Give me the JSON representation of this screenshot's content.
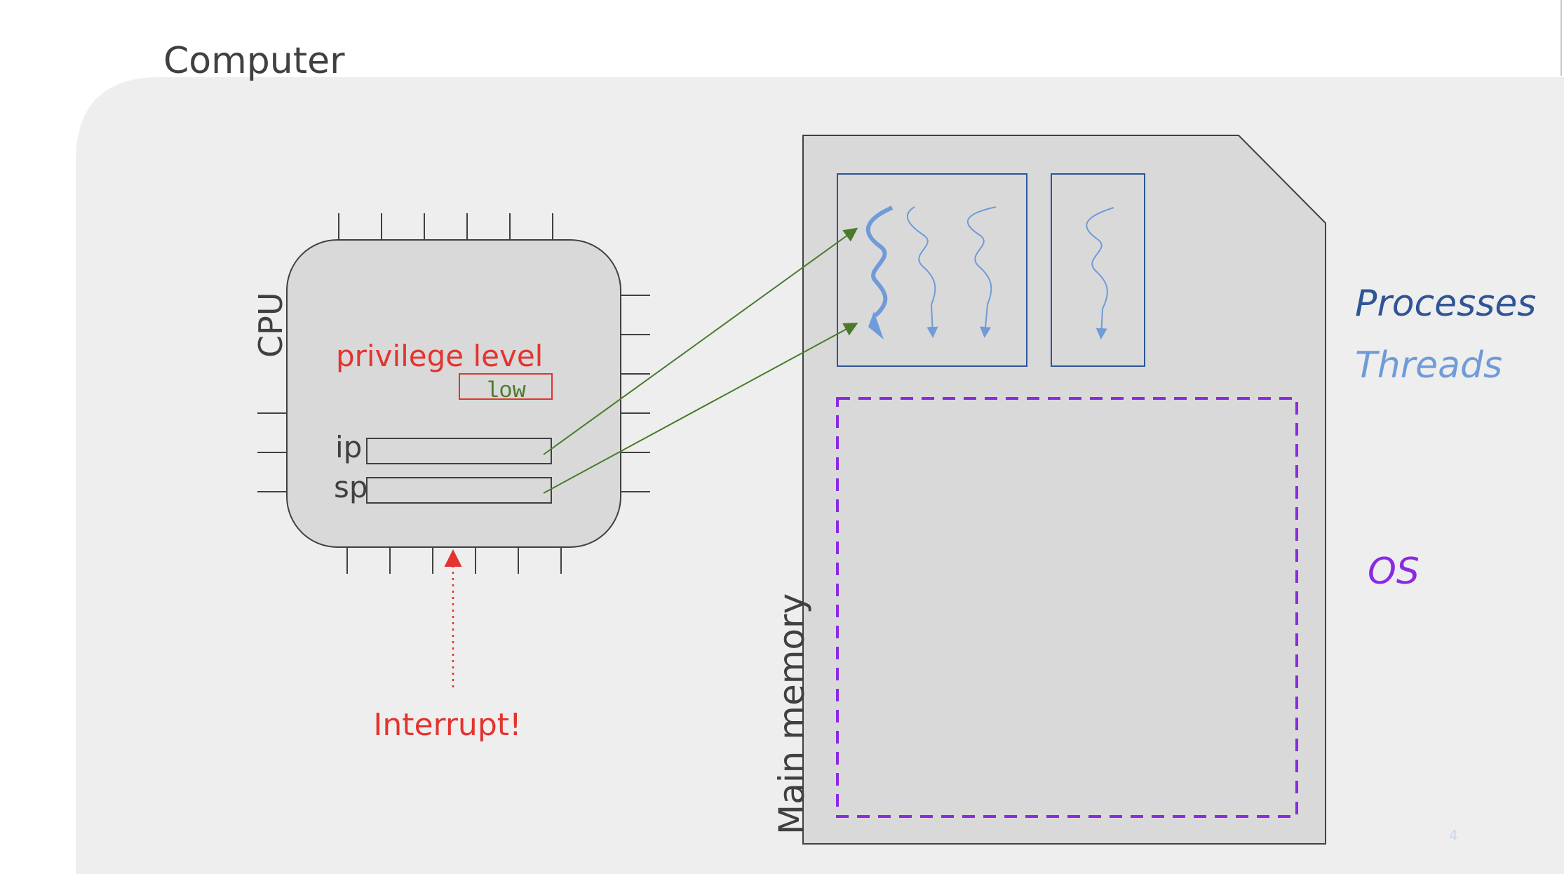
{
  "slide": {
    "title": "Computer",
    "page_number": "4"
  },
  "cpu": {
    "label": "CPU",
    "privilege_label": "privilege level",
    "privilege_value": "low",
    "ip_label": "ip",
    "sp_label": "sp"
  },
  "interrupt": {
    "label": "Interrupt!"
  },
  "memory": {
    "label": "Main memory"
  },
  "legend": {
    "processes": "Processes",
    "threads": "Threads",
    "os": "OS"
  },
  "colors": {
    "background_panel": "#eeeeee",
    "chip_fill": "#d9d9d9",
    "privilege_red": "#e3342f",
    "arrow_green": "#4a7a2c",
    "process_blue": "#2f5597",
    "thread_blue": "#6f9bd8",
    "os_purple": "#8a2be2"
  }
}
